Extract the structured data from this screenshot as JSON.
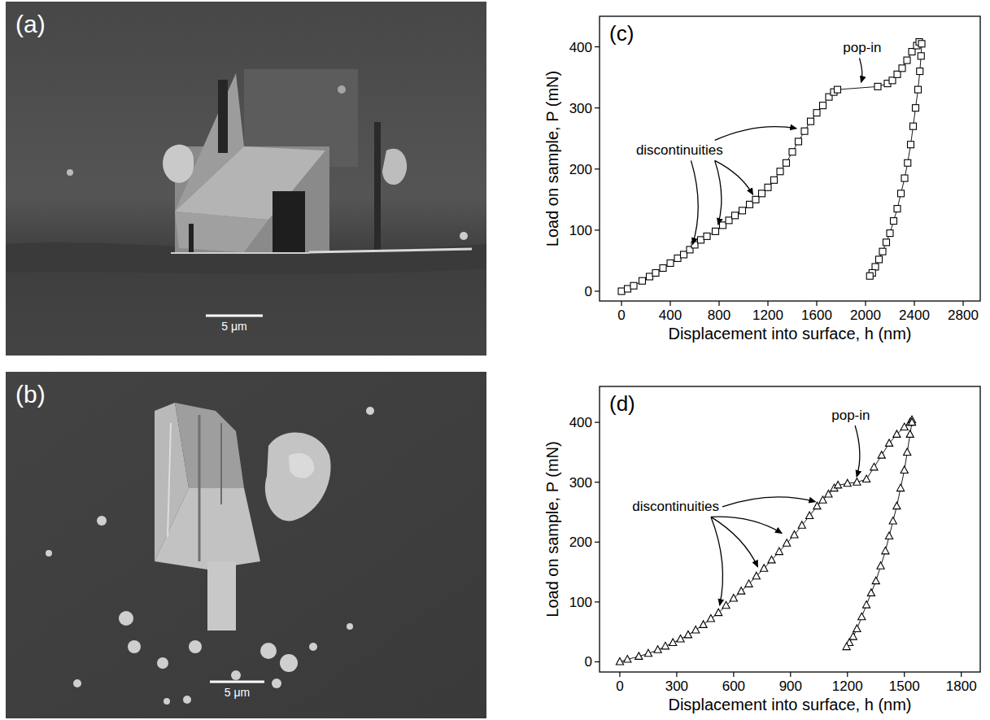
{
  "images": [
    {
      "label": "(a)",
      "scale_bar": "5 μm"
    },
    {
      "label": "(b)",
      "scale_bar": "5 μm"
    }
  ],
  "chart_data": [
    {
      "type": "scatter",
      "title": "(c)",
      "x_label": "Displacement into surface, h (nm)",
      "y_label": "Load on sample, P (mN)",
      "xlim": [
        -180,
        2940
      ],
      "xticks": [
        0,
        400,
        800,
        1200,
        1600,
        2000,
        2400,
        2800
      ],
      "ylim": [
        -16,
        450
      ],
      "yticks": [
        0,
        100,
        200,
        300,
        400
      ],
      "grid": false,
      "color": "#000000",
      "marker": "square",
      "line_style": "solid",
      "series": [
        {
          "x": [
            0,
            50,
            100,
            170,
            230,
            280,
            340,
            400,
            460,
            510,
            560,
            600,
            650,
            700,
            770,
            830,
            880,
            930,
            990,
            1050,
            1100,
            1150,
            1200,
            1250,
            1300,
            1350,
            1400,
            1450,
            1500,
            1550,
            1600,
            1650,
            1700,
            1740,
            1770,
            2100,
            2180,
            2220,
            2260,
            2300,
            2340,
            2380,
            2420,
            2440
          ],
          "values": [
            0,
            4,
            9,
            17,
            24,
            30,
            38,
            46,
            54,
            60,
            68,
            76,
            84,
            90,
            98,
            108,
            116,
            124,
            132,
            142,
            150,
            160,
            170,
            182,
            196,
            210,
            228,
            245,
            262,
            278,
            292,
            304,
            318,
            326,
            330,
            335,
            340,
            345,
            355,
            365,
            378,
            392,
            402,
            408
          ]
        },
        {
          "x": [
            2460,
            2455,
            2445,
            2430,
            2410,
            2390,
            2370,
            2345,
            2320,
            2290,
            2260,
            2230,
            2200,
            2170,
            2140,
            2110,
            2080,
            2055,
            2035
          ],
          "values": [
            405,
            385,
            360,
            330,
            300,
            270,
            240,
            210,
            185,
            160,
            135,
            115,
            95,
            80,
            65,
            52,
            40,
            30,
            25
          ]
        }
      ],
      "annotations": [
        {
          "text": "discontinuities",
          "points": [
            [
              570,
              68
            ],
            [
              780,
              100
            ],
            [
              1100,
              150
            ],
            [
              1480,
              265
            ]
          ]
        },
        {
          "text": "pop-in",
          "points": [
            [
              1950,
              333
            ]
          ]
        }
      ]
    },
    {
      "type": "scatter",
      "title": "(d)",
      "x_label": "Displacement into surface, h (nm)",
      "y_label": "Load on sample, P (mN)",
      "xlim": [
        -107,
        1900
      ],
      "xticks": [
        0,
        300,
        600,
        900,
        1200,
        1500,
        1800
      ],
      "ylim": [
        -17,
        460
      ],
      "yticks": [
        0,
        100,
        200,
        300,
        400
      ],
      "grid": false,
      "color": "#000000",
      "marker": "triangle",
      "line_style": "solid",
      "series": [
        {
          "x": [
            0,
            40,
            100,
            150,
            200,
            240,
            280,
            320,
            360,
            400,
            440,
            480,
            520,
            560,
            600,
            640,
            680,
            720,
            760,
            800,
            840,
            880,
            920,
            960,
            1000,
            1040,
            1070,
            1100,
            1130,
            1150,
            1200,
            1250,
            1300,
            1340,
            1380,
            1420,
            1460,
            1500,
            1530,
            1540
          ],
          "values": [
            0,
            4,
            9,
            14,
            20,
            26,
            32,
            38,
            45,
            53,
            62,
            72,
            82,
            94,
            106,
            118,
            130,
            143,
            156,
            170,
            184,
            198,
            212,
            228,
            244,
            260,
            270,
            280,
            290,
            295,
            298,
            300,
            305,
            325,
            345,
            365,
            380,
            392,
            400,
            404
          ]
        },
        {
          "x": [
            1540,
            1530,
            1515,
            1500,
            1480,
            1460,
            1440,
            1420,
            1400,
            1375,
            1350,
            1325,
            1300,
            1275,
            1250,
            1230,
            1210,
            1195
          ],
          "values": [
            400,
            380,
            350,
            320,
            290,
            260,
            235,
            210,
            185,
            160,
            135,
            115,
            95,
            75,
            55,
            42,
            32,
            25
          ]
        }
      ],
      "annotations": [
        {
          "text": "discontinuities",
          "points": [
            [
              520,
              85
            ],
            [
              740,
              150
            ],
            [
              880,
              210
            ],
            [
              1060,
              265
            ]
          ]
        },
        {
          "text": "pop-in",
          "points": [
            [
              1240,
              300
            ]
          ]
        }
      ]
    }
  ]
}
